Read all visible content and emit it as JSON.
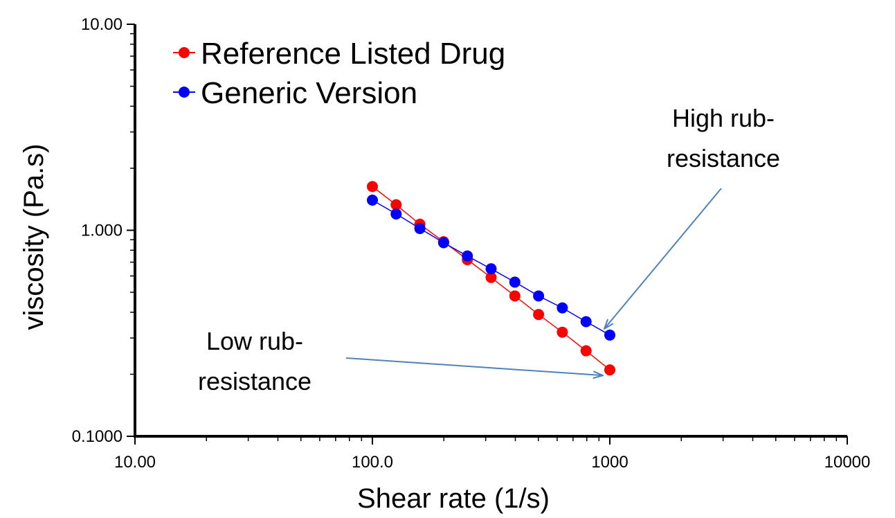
{
  "chart_data": {
    "type": "scatter",
    "xscale": "log",
    "yscale": "log",
    "xlim": [
      10,
      10000
    ],
    "ylim": [
      0.1,
      10
    ],
    "xlabel": "Shear rate (1/s)",
    "ylabel": "viscosity (Pa.s)",
    "x_tick_labels": [
      "10.00",
      "100.0",
      "1000",
      "10000"
    ],
    "y_tick_labels": [
      "0.1000",
      "1.000",
      "10.00"
    ],
    "legend_position": "top-left",
    "series": [
      {
        "name": "Reference Listed Drug",
        "color": "#ff0000",
        "x": [
          100,
          125.9,
          158.5,
          199.5,
          251.2,
          316.2,
          398.1,
          501.2,
          631,
          794.3,
          1000
        ],
        "y": [
          1.63,
          1.33,
          1.07,
          0.88,
          0.72,
          0.59,
          0.48,
          0.39,
          0.32,
          0.26,
          0.21
        ]
      },
      {
        "name": "Generic Version",
        "color": "#0000ff",
        "x": [
          100,
          125.9,
          158.5,
          199.5,
          251.2,
          316.2,
          398.1,
          501.2,
          631,
          794.3,
          1000
        ],
        "y": [
          1.4,
          1.2,
          1.02,
          0.87,
          0.75,
          0.65,
          0.56,
          0.48,
          0.42,
          0.36,
          0.31
        ]
      }
    ],
    "annotations": [
      {
        "lines": [
          "High rub-",
          "resistance"
        ],
        "target_series": 1,
        "arrow_color": "#4f81bd"
      },
      {
        "lines": [
          "Low rub-",
          "resistance"
        ],
        "target_series": 0,
        "arrow_color": "#4f81bd"
      }
    ]
  }
}
